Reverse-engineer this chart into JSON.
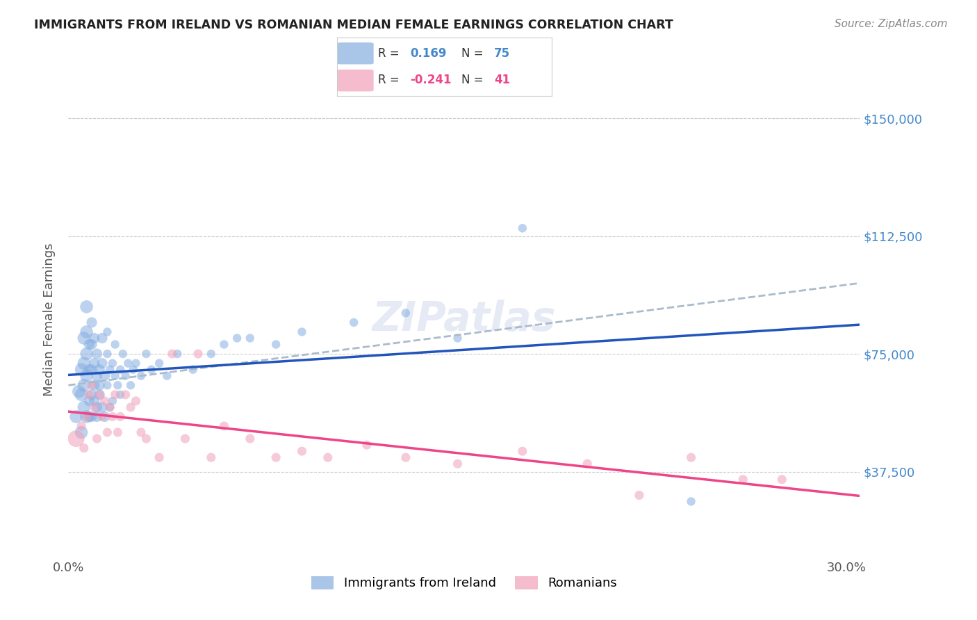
{
  "title": "IMMIGRANTS FROM IRELAND VS ROMANIAN MEDIAN FEMALE EARNINGS CORRELATION CHART",
  "source": "Source: ZipAtlas.com",
  "ylabel": "Median Female Earnings",
  "ytick_labels": [
    "$150,000",
    "$112,500",
    "$75,000",
    "$37,500"
  ],
  "ytick_values": [
    150000,
    112500,
    75000,
    37500
  ],
  "ymin": 10000,
  "ymax": 162000,
  "xmin": 0.0,
  "xmax": 0.305,
  "legend_r_ireland": "0.169",
  "legend_n_ireland": "75",
  "legend_r_romanian": "-0.241",
  "legend_n_romanian": "41",
  "color_ireland": "#85aee0",
  "color_romanian": "#f0a0b8",
  "color_ireland_line": "#2255bb",
  "color_romanian_line": "#ee4488",
  "color_dashed_line": "#aabbcc",
  "color_ytick": "#4488cc",
  "color_title": "#222222",
  "color_source": "#888888",
  "ireland_x": [
    0.003,
    0.004,
    0.005,
    0.005,
    0.005,
    0.006,
    0.006,
    0.006,
    0.006,
    0.007,
    0.007,
    0.007,
    0.007,
    0.007,
    0.008,
    0.008,
    0.008,
    0.008,
    0.009,
    0.009,
    0.009,
    0.009,
    0.009,
    0.01,
    0.01,
    0.01,
    0.01,
    0.011,
    0.011,
    0.011,
    0.011,
    0.012,
    0.012,
    0.012,
    0.013,
    0.013,
    0.013,
    0.014,
    0.014,
    0.015,
    0.015,
    0.015,
    0.016,
    0.016,
    0.017,
    0.017,
    0.018,
    0.018,
    0.019,
    0.02,
    0.02,
    0.021,
    0.022,
    0.023,
    0.024,
    0.025,
    0.026,
    0.028,
    0.03,
    0.032,
    0.035,
    0.038,
    0.042,
    0.048,
    0.055,
    0.06,
    0.065,
    0.07,
    0.08,
    0.09,
    0.11,
    0.13,
    0.15,
    0.175,
    0.24
  ],
  "ireland_y": [
    55000,
    63000,
    50000,
    62000,
    70000,
    58000,
    65000,
    72000,
    80000,
    68000,
    75000,
    55000,
    82000,
    90000,
    60000,
    70000,
    78000,
    55000,
    62000,
    70000,
    55000,
    78000,
    85000,
    65000,
    72000,
    60000,
    80000,
    55000,
    68000,
    75000,
    58000,
    62000,
    70000,
    65000,
    58000,
    72000,
    80000,
    68000,
    55000,
    65000,
    75000,
    82000,
    70000,
    58000,
    72000,
    60000,
    68000,
    78000,
    65000,
    70000,
    62000,
    75000,
    68000,
    72000,
    65000,
    70000,
    72000,
    68000,
    75000,
    70000,
    72000,
    68000,
    75000,
    70000,
    75000,
    78000,
    80000,
    80000,
    78000,
    82000,
    85000,
    88000,
    80000,
    115000,
    28000
  ],
  "romanian_x": [
    0.003,
    0.005,
    0.006,
    0.007,
    0.008,
    0.009,
    0.01,
    0.011,
    0.012,
    0.013,
    0.014,
    0.015,
    0.016,
    0.017,
    0.018,
    0.019,
    0.02,
    0.022,
    0.024,
    0.026,
    0.028,
    0.03,
    0.035,
    0.04,
    0.045,
    0.05,
    0.055,
    0.06,
    0.07,
    0.08,
    0.09,
    0.1,
    0.115,
    0.13,
    0.15,
    0.175,
    0.2,
    0.22,
    0.24,
    0.26,
    0.275
  ],
  "romanian_y": [
    48000,
    52000,
    45000,
    55000,
    62000,
    65000,
    58000,
    48000,
    62000,
    55000,
    60000,
    50000,
    58000,
    55000,
    62000,
    50000,
    55000,
    62000,
    58000,
    60000,
    50000,
    48000,
    42000,
    75000,
    48000,
    75000,
    42000,
    52000,
    48000,
    42000,
    44000,
    42000,
    46000,
    42000,
    40000,
    44000,
    40000,
    30000,
    42000,
    35000,
    35000
  ],
  "romanian_size_large": 300,
  "point_size": 120
}
